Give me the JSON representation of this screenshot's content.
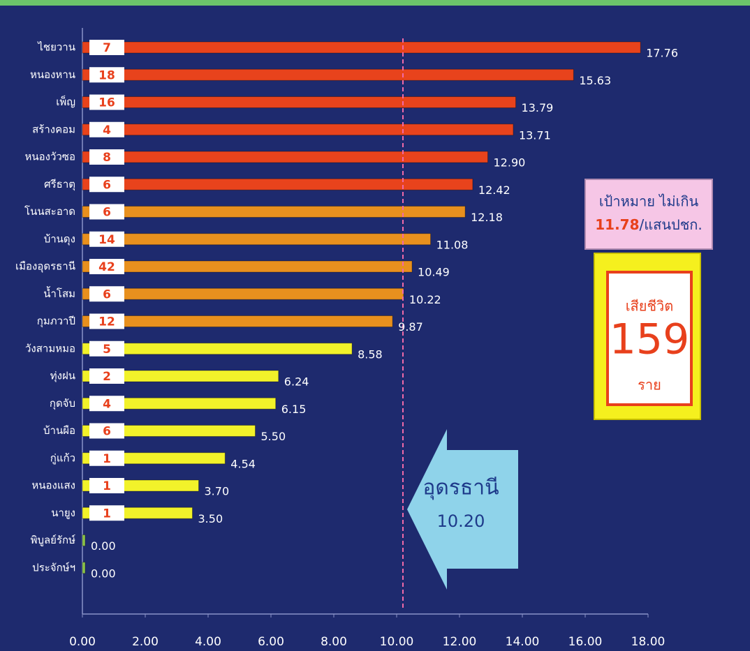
{
  "chart_data": {
    "type": "bar",
    "orientation": "horizontal",
    "categories": [
      "ไชยวาน",
      "หนองหาน",
      "เพ็ญ",
      "สร้างคอม",
      "หนองวัวซอ",
      "ศรีธาตุ",
      "โนนสะอาด",
      "บ้านดุง",
      "เมืองอุดรธานี",
      "น้ำโสม",
      "กุมภวาปี",
      "วังสามหมอ",
      "ทุ่งฝน",
      "กุดจับ",
      "บ้านผือ",
      "กู่แก้ว",
      "หนองแสง",
      "นายูง",
      "พิบูลย์รักษ์",
      "ประจักษ์ฯ"
    ],
    "values": [
      17.76,
      15.63,
      13.79,
      13.71,
      12.9,
      12.42,
      12.18,
      11.08,
      10.49,
      10.22,
      9.87,
      8.58,
      6.24,
      6.15,
      5.5,
      4.54,
      3.7,
      3.5,
      0,
      0
    ],
    "value_labels": [
      "17.76",
      "15.63",
      "13.79",
      "13.71",
      "12.90",
      "12.42",
      "12.18",
      "11.08",
      "10.49",
      "10.22",
      "9.87",
      "8.58",
      "6.24",
      "6.15",
      "5.50",
      "4.54",
      "3.70",
      "3.50",
      "0.00",
      "0.00"
    ],
    "deaths": [
      7,
      18,
      16,
      4,
      8,
      6,
      6,
      14,
      42,
      6,
      12,
      5,
      2,
      4,
      6,
      1,
      1,
      1,
      null,
      null
    ],
    "colors": [
      "#e8431c",
      "#e8431c",
      "#e8431c",
      "#e8431c",
      "#e8431c",
      "#e8431c",
      "#e8901e",
      "#e8901e",
      "#e8901e",
      "#e8901e",
      "#e8901e",
      "#f2f22a",
      "#f2f22a",
      "#f2f22a",
      "#f2f22a",
      "#f2f22a",
      "#f2f22a",
      "#f2f22a",
      "#8bc34a",
      "#8bc34a"
    ],
    "xlim": [
      0,
      18
    ],
    "xticks": [
      {
        "value": 0,
        "label": "0.00"
      },
      {
        "value": 2,
        "label": "2.00"
      },
      {
        "value": 4,
        "label": "4.00"
      },
      {
        "value": 6,
        "label": "6.00"
      },
      {
        "value": 8,
        "label": "8.00"
      },
      {
        "value": 10,
        "label": "10.00"
      },
      {
        "value": 12,
        "label": "12.00"
      },
      {
        "value": 14,
        "label": "14.00"
      },
      {
        "value": 16,
        "label": "16.00"
      },
      {
        "value": 18,
        "label": "18.00"
      }
    ],
    "reference_line": {
      "name": "อุดรธานี",
      "value": 10.2,
      "label": "10.20",
      "color": "#f06aa8"
    },
    "target": {
      "text": "เป้าหมาย ไม่เกิน",
      "value": 11.78,
      "unit": "/แสนปชก."
    },
    "total_deaths": {
      "title": "เสียชีวิต",
      "value": 159,
      "unit": "ราย"
    }
  }
}
